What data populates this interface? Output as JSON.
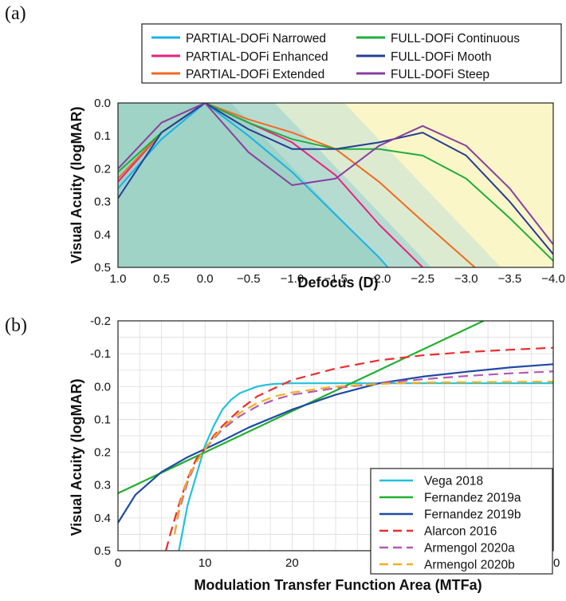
{
  "chart_data": [
    {
      "panel_label": "(a)",
      "type": "line",
      "xlabel": "Defocus (D)",
      "ylabel": "Visual Acuity (logMAR)",
      "xlim": [
        1.0,
        -4.0
      ],
      "ylim": [
        0.0,
        0.5
      ],
      "x_ticks": [
        "1.0",
        "0.5",
        "0.0",
        "−0.5",
        "−1.0",
        "−1.5",
        "−2.0",
        "−2.5",
        "−3.0",
        "−3.5",
        "−4.0"
      ],
      "y_ticks": [
        "0.0",
        "0.1",
        "0.2",
        "0.3",
        "0.4",
        "0.5"
      ],
      "legend_position": "top",
      "background_zones": [
        {
          "name": "teal",
          "color": "#9ed3c6",
          "edge_bottom_x": -2.1,
          "edge_top_x": -0.3
        },
        {
          "name": "blue-green",
          "color": "#b6dcd2",
          "edge_bottom_x": -2.6,
          "edge_top_x": -0.8
        },
        {
          "name": "pale-green",
          "color": "#dcebcf",
          "edge_bottom_x": -3.4,
          "edge_top_x": -1.6
        },
        {
          "name": "yellow",
          "color": "#fbf6c8",
          "edge_bottom_x": -4.0,
          "edge_top_x": -4.0
        }
      ],
      "series": [
        {
          "name": "PARTIAL-DOFi Narrowed",
          "color": "#1ab2e8",
          "x": [
            1.0,
            0.5,
            0.0,
            -0.5,
            -1.0,
            -1.5,
            -2.0,
            -2.1
          ],
          "y": [
            0.26,
            0.11,
            0.0,
            0.1,
            0.21,
            0.34,
            0.47,
            0.5
          ]
        },
        {
          "name": "PARTIAL-DOFi Enhanced",
          "color": "#e8237a",
          "x": [
            1.0,
            0.5,
            0.0,
            -0.5,
            -1.0,
            -1.5,
            -2.0,
            -2.5
          ],
          "y": [
            0.24,
            0.09,
            0.0,
            0.06,
            0.12,
            0.22,
            0.37,
            0.5
          ]
        },
        {
          "name": "PARTIAL-DOFi Extended",
          "color": "#f26a21",
          "x": [
            1.0,
            0.5,
            0.0,
            -0.5,
            -1.0,
            -1.5,
            -2.0,
            -2.5,
            -3.1
          ],
          "y": [
            0.23,
            0.09,
            0.0,
            0.05,
            0.09,
            0.14,
            0.24,
            0.36,
            0.5
          ]
        },
        {
          "name": "FULL-DOFi Continuous",
          "color": "#1fae3c",
          "x": [
            1.0,
            0.5,
            0.0,
            -0.5,
            -1.0,
            -1.5,
            -2.0,
            -2.5,
            -3.0,
            -3.5,
            -4.0
          ],
          "y": [
            0.21,
            0.09,
            0.0,
            0.06,
            0.11,
            0.14,
            0.14,
            0.16,
            0.23,
            0.35,
            0.48
          ]
        },
        {
          "name": "FULL-DOFi Mooth",
          "color": "#253f95",
          "x": [
            1.0,
            0.5,
            0.0,
            -0.5,
            -1.0,
            -1.5,
            -2.0,
            -2.5,
            -3.0,
            -3.5,
            -4.0
          ],
          "y": [
            0.29,
            0.09,
            0.0,
            0.08,
            0.14,
            0.14,
            0.12,
            0.09,
            0.16,
            0.3,
            0.46
          ]
        },
        {
          "name": "FULL-DOFi Steep",
          "color": "#8a3fa0",
          "x": [
            1.0,
            0.5,
            0.0,
            -0.5,
            -1.0,
            -1.5,
            -2.0,
            -2.5,
            -3.0,
            -3.5,
            -4.0
          ],
          "y": [
            0.2,
            0.06,
            0.0,
            0.15,
            0.25,
            0.23,
            0.13,
            0.07,
            0.13,
            0.26,
            0.43
          ]
        }
      ]
    },
    {
      "panel_label": "(b)",
      "type": "line",
      "xlabel": "Modulation Transfer Function Area (MTFa)",
      "ylabel": "Visual Acuity (logMAR)",
      "xlim": [
        0,
        50
      ],
      "ylim": [
        -0.2,
        0.5
      ],
      "x_ticks": [
        "0",
        "10",
        "20",
        "30",
        "40",
        "50"
      ],
      "y_ticks": [
        "-0.2",
        "-0.1",
        "0.0",
        "0.1",
        "0.2",
        "0.3",
        "0.4",
        "0.5"
      ],
      "grid": true,
      "legend_position": "bottom-right",
      "series": [
        {
          "name": "Vega 2018",
          "color": "#21c2dc",
          "dash": false,
          "x": [
            7.0,
            8,
            9,
            10,
            11,
            12,
            13,
            14,
            15,
            16,
            17,
            18,
            20,
            25,
            30,
            40,
            50
          ],
          "y": [
            0.5,
            0.36,
            0.27,
            0.18,
            0.12,
            0.07,
            0.04,
            0.02,
            0.01,
            0.0,
            -0.005,
            -0.008,
            -0.01,
            -0.01,
            -0.01,
            -0.01,
            -0.01
          ]
        },
        {
          "name": "Fernandez 2019a",
          "color": "#22b02e",
          "dash": false,
          "x": [
            0,
            10,
            20,
            30,
            42
          ],
          "y": [
            0.325,
            0.2,
            0.075,
            -0.05,
            -0.2
          ]
        },
        {
          "name": "Fernandez 2019b",
          "color": "#1f4aa3",
          "dash": false,
          "x": [
            0,
            2,
            5,
            8,
            10,
            12,
            15,
            20,
            25,
            30,
            35,
            40,
            45,
            50
          ],
          "y": [
            0.415,
            0.33,
            0.26,
            0.215,
            0.19,
            0.165,
            0.125,
            0.07,
            0.025,
            -0.01,
            -0.03,
            -0.045,
            -0.058,
            -0.068
          ]
        },
        {
          "name": "Alarcon 2016",
          "color": "#ea2f2f",
          "dash": true,
          "x": [
            5.5,
            6,
            7,
            8,
            9,
            10,
            11,
            12,
            14,
            16,
            18,
            20,
            25,
            30,
            35,
            40,
            45,
            50
          ],
          "y": [
            0.5,
            0.45,
            0.36,
            0.28,
            0.22,
            0.19,
            0.15,
            0.12,
            0.07,
            0.03,
            0.005,
            -0.02,
            -0.055,
            -0.08,
            -0.095,
            -0.105,
            -0.112,
            -0.118
          ]
        },
        {
          "name": "Armengol 2020a",
          "color": "#b35ab3",
          "dash": true,
          "x": [
            6.5,
            7,
            8,
            9,
            10,
            11,
            12,
            14,
            16,
            18,
            20,
            25,
            30,
            35,
            40,
            45,
            50
          ],
          "y": [
            0.45,
            0.38,
            0.29,
            0.23,
            0.19,
            0.16,
            0.13,
            0.09,
            0.06,
            0.04,
            0.025,
            0.005,
            -0.01,
            -0.022,
            -0.032,
            -0.04,
            -0.046
          ]
        },
        {
          "name": "Armengol 2020b",
          "color": "#f2b01c",
          "dash": true,
          "x": [
            6.5,
            7,
            8,
            9,
            10,
            11,
            12,
            14,
            16,
            18,
            20,
            25,
            30,
            35,
            40,
            45,
            50
          ],
          "y": [
            0.45,
            0.37,
            0.28,
            0.23,
            0.19,
            0.155,
            0.125,
            0.08,
            0.05,
            0.03,
            0.018,
            0.0,
            -0.008,
            -0.012,
            -0.013,
            -0.014,
            -0.015
          ]
        }
      ]
    }
  ]
}
